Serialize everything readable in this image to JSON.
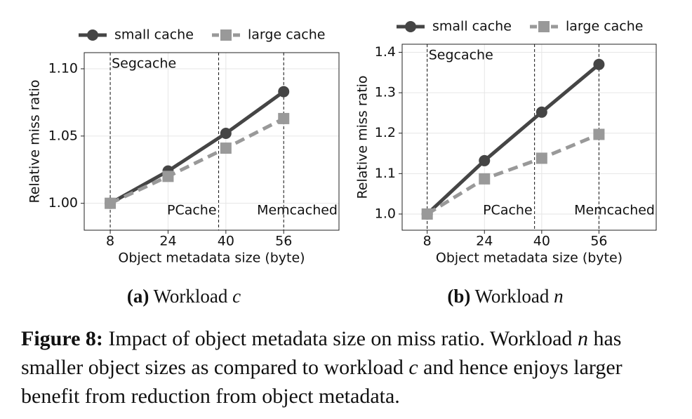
{
  "chart_data": [
    {
      "type": "line",
      "caption": {
        "label": "(a)",
        "text": "Workload",
        "var": "c"
      },
      "xlabel": "Object metadata size (byte)",
      "ylabel": "Relative miss ratio",
      "x": [
        8,
        24,
        40,
        56
      ],
      "series": [
        {
          "name": "small cache",
          "color": "#454545",
          "marker": "circle",
          "linestyle": "solid",
          "values": [
            1.0,
            1.024,
            1.052,
            1.083
          ]
        },
        {
          "name": "large cache",
          "color": "#999999",
          "marker": "square",
          "linestyle": "dashed",
          "values": [
            1.0,
            1.02,
            1.041,
            1.063
          ]
        }
      ],
      "xlim": [
        0.8,
        71.3
      ],
      "xticks": [
        8,
        24,
        40,
        56
      ],
      "ylim": [
        0.98,
        1.112
      ],
      "yticks": [
        {
          "value": 1.0,
          "label": "1.00"
        },
        {
          "value": 1.05,
          "label": "1.05"
        },
        {
          "value": 1.1,
          "label": "1.10"
        }
      ],
      "annotations": [
        {
          "text": "Segcache",
          "x": 8
        },
        {
          "text": "PCache",
          "x": 38
        },
        {
          "text": "Memcached",
          "x": 56
        }
      ],
      "grid": true,
      "legend": "top"
    },
    {
      "type": "line",
      "caption": {
        "label": "(b)",
        "text": "Workload",
        "var": "n"
      },
      "xlabel": "Object metadata size (byte)",
      "ylabel": "Relative miss ratio",
      "x": [
        8,
        24,
        40,
        56
      ],
      "series": [
        {
          "name": "small cache",
          "color": "#454545",
          "marker": "circle",
          "linestyle": "solid",
          "values": [
            1.0,
            1.132,
            1.252,
            1.37
          ]
        },
        {
          "name": "large cache",
          "color": "#999999",
          "marker": "square",
          "linestyle": "dashed",
          "values": [
            1.0,
            1.087,
            1.138,
            1.197
          ]
        }
      ],
      "xlim": [
        1,
        72
      ],
      "xticks": [
        8,
        24,
        40,
        56
      ],
      "ylim": [
        0.96,
        1.42
      ],
      "yticks": [
        {
          "value": 1.0,
          "label": "1.0"
        },
        1.1,
        1.2,
        1.3,
        1.4
      ],
      "annotations": [
        {
          "text": "Segcache",
          "x": 8
        },
        {
          "text": "PCache",
          "x": 38
        },
        {
          "text": "Memcached",
          "x": 56
        }
      ],
      "grid": true,
      "legend": "top"
    }
  ],
  "caption": {
    "label": "Figure 8:",
    "parts": [
      " Impact of object metadata size on miss ratio. Workload ",
      "n",
      " has smaller object sizes as compared to workload ",
      "c",
      " and hence enjoys larger benefit from reduction from object metadata."
    ]
  }
}
